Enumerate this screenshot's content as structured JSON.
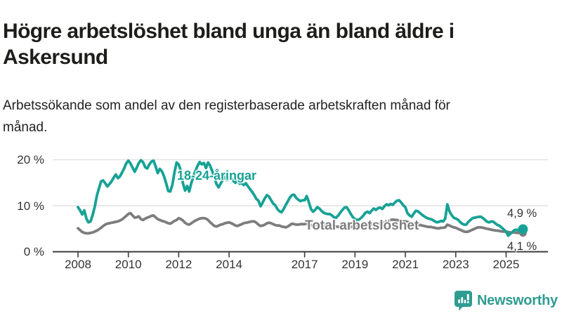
{
  "header": {
    "title": "Högre arbetslöshet bland unga än bland äldre i Askersund",
    "subtitle": "Arbetssökande som andel av den registerbaserade arbetskraften månad för månad."
  },
  "footer": {
    "brand_name": "Newsworthy",
    "brand_color": "#2f9c92",
    "brand_icon": "bar-chart-speech-bubble-icon"
  },
  "chart_data": {
    "type": "line",
    "title": "Högre arbetslöshet bland unga än bland äldre i Askersund",
    "subtitle": "Arbetssökande som andel av den registerbaserade arbetskraften månad för månad.",
    "unit": "%",
    "frequency": "monthly",
    "x_start": "2008-01",
    "x_end": "2025-09",
    "x_tick_years": [
      2008,
      2010,
      2012,
      2014,
      2017,
      2019,
      2021,
      2023,
      2025
    ],
    "x_tick_labels": [
      "2008",
      "2010",
      "2012",
      "2014",
      "2017",
      "2019",
      "2021",
      "2023",
      "2025"
    ],
    "y_ticks": [
      0,
      10,
      20
    ],
    "y_tick_labels": [
      "0 %",
      "10 %",
      "20 %"
    ],
    "ylim": [
      0,
      21.5
    ],
    "grid": "horizontal-only",
    "colors": {
      "grid": "#e2e2e2",
      "axis": "#3b3b3b",
      "tick_text": "#333333"
    },
    "series": [
      {
        "name": "18-24-åringar",
        "color": "#16a295",
        "end_label": "4,9 %",
        "end_value": 4.9,
        "values": [
          9.7,
          9.0,
          8.1,
          9.0,
          7.2,
          6.4,
          6.6,
          8.0,
          9.8,
          12.2,
          13.8,
          15.3,
          15.5,
          14.9,
          14.2,
          14.7,
          15.3,
          16.1,
          16.8,
          16.0,
          16.4,
          17.2,
          18.1,
          19.2,
          19.8,
          19.2,
          18.3,
          17.4,
          18.3,
          19.3,
          19.9,
          19.5,
          18.4,
          18.1,
          19.0,
          19.6,
          19.8,
          18.6,
          17.1,
          18.0,
          17.5,
          16.4,
          14.9,
          13.2,
          13.1,
          14.6,
          17.3,
          19.4,
          19.0,
          17.6,
          14.9,
          13.3,
          14.3,
          13.1,
          14.9,
          16.4,
          17.6,
          18.7,
          19.5,
          19.0,
          19.3,
          18.2,
          19.4,
          18.7,
          17.5,
          16.1,
          14.7,
          14.0,
          14.8,
          15.7,
          16.3,
          15.6,
          15.9,
          16.2,
          15.4,
          15.0,
          15.5,
          14.8,
          14.9,
          14.5,
          14.9,
          14.2,
          13.6,
          13.0,
          12.3,
          11.5,
          11.1,
          9.9,
          10.7,
          11.6,
          12.3,
          12.0,
          11.2,
          10.5,
          10.1,
          9.3,
          8.8,
          8.6,
          9.3,
          10.2,
          11.0,
          11.8,
          12.3,
          12.4,
          11.7,
          11.3,
          11.0,
          11.2,
          11.2,
          12.1,
          10.8,
          9.3,
          8.7,
          9.1,
          9.7,
          9.4,
          8.9,
          8.5,
          8.3,
          8.2,
          8.2,
          7.9,
          7.5,
          7.4,
          7.9,
          8.5,
          9.1,
          9.6,
          9.7,
          9.0,
          8.2,
          7.5,
          7.1,
          6.9,
          7.0,
          7.4,
          7.9,
          8.5,
          8.7,
          8.4,
          9.0,
          9.4,
          9.1,
          9.5,
          9.6,
          9.3,
          9.9,
          10.3,
          10.1,
          10.4,
          10.2,
          10.7,
          11.1,
          11.2,
          10.7,
          10.1,
          9.7,
          8.4,
          7.9,
          7.6,
          8.3,
          8.9,
          8.8,
          8.4,
          8.0,
          7.7,
          7.4,
          7.2,
          7.1,
          6.9,
          6.6,
          6.4,
          6.5,
          6.7,
          6.6,
          7.2,
          10.3,
          8.8,
          8.0,
          7.4,
          7.2,
          7.0,
          6.5,
          6.1,
          5.9,
          5.9,
          6.5,
          6.9,
          7.3,
          7.4,
          7.5,
          7.6,
          7.6,
          7.3,
          6.9,
          6.5,
          6.4,
          6.6,
          6.5,
          6.1,
          5.8,
          5.6,
          5.2,
          4.8,
          4.4,
          3.5,
          3.9,
          4.3,
          4.7,
          4.8,
          4.6,
          4.7,
          4.9
        ]
      },
      {
        "name": "Total arbetslöshet",
        "color": "#7d7d7d",
        "end_label": "4,1 %",
        "end_value": 4.1,
        "values": [
          5.1,
          4.7,
          4.3,
          4.1,
          4.0,
          4.0,
          4.1,
          4.2,
          4.4,
          4.6,
          4.9,
          5.2,
          5.6,
          5.9,
          6.1,
          6.2,
          6.3,
          6.4,
          6.5,
          6.6,
          6.8,
          7.0,
          7.4,
          7.8,
          8.2,
          8.4,
          7.9,
          7.4,
          7.5,
          7.7,
          7.1,
          6.9,
          7.2,
          7.4,
          7.6,
          7.8,
          7.9,
          7.5,
          7.1,
          6.9,
          6.7,
          6.6,
          6.4,
          6.2,
          6.1,
          6.4,
          6.7,
          6.9,
          7.3,
          7.1,
          6.8,
          6.3,
          6.0,
          5.9,
          6.2,
          6.5,
          6.8,
          7.0,
          7.2,
          7.3,
          7.3,
          7.2,
          6.9,
          6.4,
          6.0,
          5.6,
          5.5,
          5.7,
          5.9,
          6.0,
          6.2,
          6.3,
          6.4,
          6.2,
          6.0,
          5.7,
          5.6,
          5.8,
          6.0,
          6.2,
          6.3,
          6.4,
          6.5,
          6.6,
          6.6,
          6.3,
          5.9,
          5.6,
          5.7,
          5.9,
          6.2,
          6.3,
          6.2,
          6.0,
          5.8,
          5.7,
          5.7,
          5.5,
          5.4,
          5.3,
          5.5,
          5.8,
          6.1,
          6.0,
          5.9,
          5.9,
          6.0,
          6.0,
          6.0,
          6.1,
          5.9,
          5.8,
          5.7,
          5.8,
          5.9,
          5.8,
          5.7,
          5.6,
          5.6,
          5.7,
          5.8,
          5.7,
          5.6,
          5.5,
          5.4,
          5.5,
          5.6,
          5.7,
          5.6,
          5.5,
          5.4,
          5.5,
          5.6,
          5.5,
          5.4,
          5.5,
          5.6,
          5.7,
          5.8,
          5.8,
          5.9,
          6.0,
          6.0,
          6.1,
          6.2,
          6.1,
          6.4,
          6.6,
          6.8,
          6.9,
          7.0,
          6.9,
          6.9,
          6.8,
          6.7,
          6.6,
          6.6,
          6.5,
          6.3,
          6.2,
          6.1,
          6.0,
          5.9,
          5.8,
          5.7,
          5.6,
          5.5,
          5.4,
          5.4,
          5.3,
          5.2,
          5.1,
          5.1,
          5.2,
          5.2,
          5.3,
          5.9,
          5.7,
          5.5,
          5.3,
          5.2,
          5.0,
          4.8,
          4.6,
          4.4,
          4.3,
          4.4,
          4.6,
          4.8,
          5.0,
          5.2,
          5.3,
          5.3,
          5.2,
          5.1,
          5.0,
          4.9,
          4.8,
          4.7,
          4.6,
          4.6,
          4.5,
          4.4,
          4.4,
          4.3,
          4.3,
          4.2,
          4.2,
          4.2,
          4.1,
          4.1,
          4.1,
          4.1
        ]
      }
    ]
  }
}
